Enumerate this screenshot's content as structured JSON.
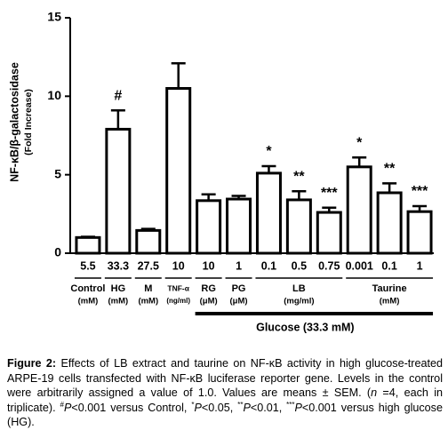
{
  "chart_data": {
    "type": "bar",
    "y_label": "NF-κB/β-galactosidase",
    "y_label_sub": "(Fold Increase)",
    "categories": [
      "5.5",
      "33.3",
      "27.5",
      "10",
      "10",
      "1",
      "0.1",
      "0.5",
      "0.75",
      "0.001",
      "0.1",
      "1"
    ],
    "values": [
      1.0,
      7.9,
      1.45,
      10.5,
      3.35,
      3.45,
      5.1,
      3.4,
      2.6,
      5.5,
      3.85,
      2.65
    ],
    "errors": [
      0.05,
      1.2,
      0.1,
      1.6,
      0.4,
      0.2,
      0.45,
      0.55,
      0.3,
      0.6,
      0.6,
      0.35
    ],
    "annotations": [
      null,
      "#",
      null,
      null,
      null,
      null,
      "*",
      "**",
      "***",
      "*",
      "**",
      "***"
    ],
    "groups": [
      {
        "name": "Control",
        "unit": "(mM)",
        "start": 0,
        "count": 1
      },
      {
        "name": "HG",
        "unit": "(mM)",
        "start": 1,
        "count": 1
      },
      {
        "name": "M",
        "unit": "(mM)",
        "start": 2,
        "count": 1
      },
      {
        "name": "TNF-α",
        "unit": "(ng/ml)",
        "start": 3,
        "count": 1
      },
      {
        "name": "RG",
        "unit": "(μM)",
        "start": 4,
        "count": 1
      },
      {
        "name": "PG",
        "unit": "(μM)",
        "start": 5,
        "count": 1
      },
      {
        "name": "LB",
        "unit": "(mg/ml)",
        "start": 6,
        "count": 3
      },
      {
        "name": "Taurine",
        "unit": "(mM)",
        "start": 9,
        "count": 3
      }
    ],
    "bracket": {
      "label": "Glucose (33.3 mM)",
      "start": 4,
      "count": 8
    },
    "color": "#000000",
    "ylim": [
      0,
      15
    ],
    "yticks": [
      0,
      5,
      10,
      15
    ]
  },
  "caption": {
    "label": "Figure 2:",
    "parts": [
      {
        "text": " Effects of LB extract and taurine on NF-κB activity in high glucose-treated ARPE-19 cells transfected with NF-κB luciferase reporter gene. Levels in the control were arbitrarily assigned a value of 1.0. Values are means ± SEM. (",
        "style": "plain"
      },
      {
        "text": "n",
        "style": "italic"
      },
      {
        "text": " =4, each in triplicate). ",
        "style": "plain"
      },
      {
        "text": "#",
        "style": "sup"
      },
      {
        "text": "P",
        "style": "italic"
      },
      {
        "text": "<0.001 versus Control, ",
        "style": "plain"
      },
      {
        "text": "*",
        "style": "sup"
      },
      {
        "text": "P",
        "style": "italic"
      },
      {
        "text": "<0.05, ",
        "style": "plain"
      },
      {
        "text": "**",
        "style": "sup"
      },
      {
        "text": "P",
        "style": "italic"
      },
      {
        "text": "<0.01, ",
        "style": "plain"
      },
      {
        "text": "***",
        "style": "sup"
      },
      {
        "text": "P",
        "style": "italic"
      },
      {
        "text": "<0.001 versus high glucose (HG).",
        "style": "plain"
      }
    ]
  }
}
